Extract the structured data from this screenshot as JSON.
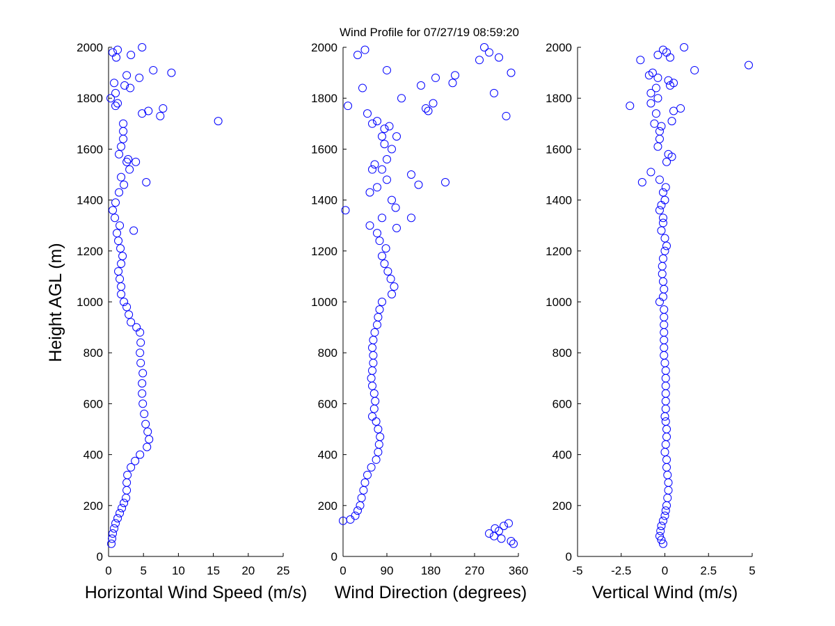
{
  "figure": {
    "title": "Wind Profile for  07/27/19 08:59:20",
    "ylabel": "Height AGL (m)"
  },
  "chart_data": [
    {
      "type": "scatter",
      "xlabel": "Horizontal Wind Speed (m/s)",
      "ylabel": "Height AGL (m)",
      "xlim": [
        0,
        25
      ],
      "ylim": [
        0,
        2000
      ],
      "xticks": [
        "0",
        "5",
        "10",
        "15",
        "20",
        "25"
      ],
      "xtick_values": [
        0,
        5,
        10,
        15,
        20,
        25
      ],
      "yticks": [
        "0",
        "200",
        "400",
        "600",
        "800",
        "1000",
        "1200",
        "1400",
        "1600",
        "1800",
        "2000"
      ],
      "ytick_values": [
        0,
        200,
        400,
        600,
        800,
        1000,
        1200,
        1400,
        1600,
        1800,
        2000
      ],
      "marker": "open-circle",
      "marker_color": "#0000ff",
      "points": [
        [
          0.4,
          50
        ],
        [
          0.5,
          70
        ],
        [
          0.6,
          90
        ],
        [
          0.8,
          110
        ],
        [
          1.0,
          130
        ],
        [
          1.3,
          150
        ],
        [
          1.6,
          170
        ],
        [
          1.9,
          190
        ],
        [
          2.2,
          210
        ],
        [
          2.5,
          230
        ],
        [
          2.6,
          260
        ],
        [
          2.6,
          290
        ],
        [
          2.7,
          320
        ],
        [
          3.2,
          350
        ],
        [
          3.8,
          375
        ],
        [
          4.5,
          400
        ],
        [
          5.5,
          430
        ],
        [
          5.8,
          460
        ],
        [
          5.6,
          490
        ],
        [
          5.3,
          520
        ],
        [
          5.1,
          560
        ],
        [
          4.9,
          600
        ],
        [
          4.8,
          640
        ],
        [
          4.8,
          680
        ],
        [
          4.9,
          720
        ],
        [
          4.6,
          760
        ],
        [
          4.5,
          800
        ],
        [
          4.6,
          840
        ],
        [
          4.5,
          880
        ],
        [
          4.0,
          900
        ],
        [
          3.2,
          920
        ],
        [
          2.9,
          950
        ],
        [
          2.6,
          980
        ],
        [
          2.2,
          1000
        ],
        [
          1.8,
          1030
        ],
        [
          1.8,
          1060
        ],
        [
          1.6,
          1090
        ],
        [
          1.4,
          1120
        ],
        [
          1.8,
          1150
        ],
        [
          2.0,
          1180
        ],
        [
          1.7,
          1210
        ],
        [
          1.4,
          1240
        ],
        [
          1.2,
          1270
        ],
        [
          1.6,
          1300
        ],
        [
          0.9,
          1330
        ],
        [
          0.6,
          1360
        ],
        [
          1.0,
          1390
        ],
        [
          1.5,
          1430
        ],
        [
          2.2,
          1460
        ],
        [
          1.8,
          1490
        ],
        [
          3.0,
          1520
        ],
        [
          2.6,
          1550
        ],
        [
          1.5,
          1580
        ],
        [
          1.8,
          1610
        ],
        [
          2.1,
          1640
        ],
        [
          2.1,
          1670
        ],
        [
          2.1,
          1700
        ],
        [
          15.7,
          1710
        ],
        [
          7.4,
          1730
        ],
        [
          4.8,
          1740
        ],
        [
          5.7,
          1750
        ],
        [
          7.8,
          1760
        ],
        [
          1.3,
          1780
        ],
        [
          0.3,
          1800
        ],
        [
          2.3,
          1850
        ],
        [
          1.0,
          1820
        ],
        [
          3.1,
          1840
        ],
        [
          0.8,
          1860
        ],
        [
          4.4,
          1880
        ],
        [
          2.6,
          1890
        ],
        [
          9.0,
          1900
        ],
        [
          6.4,
          1910
        ],
        [
          1.1,
          1960
        ],
        [
          3.2,
          1970
        ],
        [
          0.6,
          1980
        ],
        [
          1.3,
          1990
        ],
        [
          4.8,
          2000
        ],
        [
          1.0,
          1770
        ],
        [
          3.6,
          1280
        ],
        [
          5.4,
          1470
        ],
        [
          2.8,
          1560
        ],
        [
          3.9,
          1550
        ]
      ]
    },
    {
      "type": "scatter",
      "xlabel": "Wind Direction (degrees)",
      "ylabel": "",
      "xlim": [
        0,
        360
      ],
      "ylim": [
        0,
        2000
      ],
      "xticks": [
        "0",
        "90",
        "180",
        "270",
        "360"
      ],
      "xtick_values": [
        0,
        90,
        180,
        270,
        360
      ],
      "yticks": [
        "0",
        "200",
        "400",
        "600",
        "800",
        "1000",
        "1200",
        "1400",
        "1600",
        "1800",
        "2000"
      ],
      "ytick_values": [
        0,
        200,
        400,
        600,
        800,
        1000,
        1200,
        1400,
        1600,
        1800,
        2000
      ],
      "marker": "open-circle",
      "marker_color": "#0000ff",
      "points": [
        [
          0,
          140
        ],
        [
          15,
          145
        ],
        [
          25,
          160
        ],
        [
          30,
          180
        ],
        [
          35,
          200
        ],
        [
          38,
          230
        ],
        [
          42,
          260
        ],
        [
          45,
          290
        ],
        [
          50,
          320
        ],
        [
          58,
          350
        ],
        [
          68,
          380
        ],
        [
          72,
          410
        ],
        [
          74,
          440
        ],
        [
          76,
          470
        ],
        [
          72,
          500
        ],
        [
          68,
          530
        ],
        [
          60,
          550
        ],
        [
          64,
          580
        ],
        [
          66,
          610
        ],
        [
          64,
          640
        ],
        [
          60,
          670
        ],
        [
          58,
          700
        ],
        [
          60,
          730
        ],
        [
          62,
          760
        ],
        [
          62,
          790
        ],
        [
          60,
          820
        ],
        [
          62,
          850
        ],
        [
          65,
          880
        ],
        [
          70,
          910
        ],
        [
          72,
          940
        ],
        [
          75,
          970
        ],
        [
          80,
          1000
        ],
        [
          100,
          1030
        ],
        [
          105,
          1060
        ],
        [
          98,
          1090
        ],
        [
          92,
          1120
        ],
        [
          85,
          1150
        ],
        [
          80,
          1180
        ],
        [
          88,
          1210
        ],
        [
          75,
          1240
        ],
        [
          70,
          1270
        ],
        [
          55,
          1300
        ],
        [
          80,
          1330
        ],
        [
          140,
          1330
        ],
        [
          110,
          1290
        ],
        [
          108,
          1370
        ],
        [
          100,
          1400
        ],
        [
          70,
          1450
        ],
        [
          55,
          1430
        ],
        [
          90,
          1480
        ],
        [
          140,
          1500
        ],
        [
          155,
          1460
        ],
        [
          210,
          1470
        ],
        [
          65,
          1540
        ],
        [
          80,
          1520
        ],
        [
          90,
          1560
        ],
        [
          100,
          1600
        ],
        [
          85,
          1620
        ],
        [
          80,
          1650
        ],
        [
          95,
          1690
        ],
        [
          110,
          1650
        ],
        [
          85,
          1680
        ],
        [
          60,
          1700
        ],
        [
          50,
          1740
        ],
        [
          70,
          1710
        ],
        [
          10,
          1770
        ],
        [
          170,
          1760
        ],
        [
          185,
          1780
        ],
        [
          120,
          1800
        ],
        [
          175,
          1750
        ],
        [
          225,
          1860
        ],
        [
          160,
          1850
        ],
        [
          190,
          1880
        ],
        [
          230,
          1890
        ],
        [
          310,
          1820
        ],
        [
          335,
          1730
        ],
        [
          345,
          1900
        ],
        [
          5,
          1360
        ],
        [
          90,
          1910
        ],
        [
          40,
          1840
        ],
        [
          280,
          1950
        ],
        [
          320,
          1960
        ],
        [
          290,
          2000
        ],
        [
          300,
          1980
        ],
        [
          30,
          1970
        ],
        [
          45,
          1990
        ],
        [
          300,
          90
        ],
        [
          312,
          110
        ],
        [
          320,
          100
        ],
        [
          330,
          120
        ],
        [
          340,
          130
        ],
        [
          345,
          60
        ],
        [
          350,
          50
        ],
        [
          310,
          80
        ],
        [
          325,
          70
        ],
        [
          60,
          1520
        ]
      ]
    },
    {
      "type": "scatter",
      "xlabel": "Vertical Wind (m/s)",
      "ylabel": "",
      "xlim": [
        -5,
        5
      ],
      "ylim": [
        0,
        2000
      ],
      "xticks": [
        "-5",
        "-2.5",
        "0",
        "2.5",
        "5"
      ],
      "xtick_values": [
        -5,
        -2.5,
        0,
        2.5,
        5
      ],
      "yticks": [
        "0",
        "200",
        "400",
        "600",
        "800",
        "1000",
        "1200",
        "1400",
        "1600",
        "1800",
        "2000"
      ],
      "ytick_values": [
        0,
        200,
        400,
        600,
        800,
        1000,
        1200,
        1400,
        1600,
        1800,
        2000
      ],
      "marker": "open-circle",
      "marker_color": "#0000ff",
      "points": [
        [
          -0.1,
          50
        ],
        [
          -0.2,
          65
        ],
        [
          -0.3,
          80
        ],
        [
          -0.25,
          100
        ],
        [
          -0.2,
          120
        ],
        [
          -0.1,
          140
        ],
        [
          0,
          160
        ],
        [
          0.05,
          180
        ],
        [
          0.1,
          200
        ],
        [
          0.15,
          230
        ],
        [
          0.2,
          260
        ],
        [
          0.2,
          290
        ],
        [
          0.15,
          320
        ],
        [
          0.1,
          350
        ],
        [
          0.1,
          380
        ],
        [
          0,
          410
        ],
        [
          0.05,
          440
        ],
        [
          0.1,
          470
        ],
        [
          0.1,
          500
        ],
        [
          0.05,
          530
        ],
        [
          0,
          550
        ],
        [
          0.05,
          580
        ],
        [
          0.05,
          610
        ],
        [
          0.05,
          640
        ],
        [
          0.05,
          670
        ],
        [
          0.05,
          700
        ],
        [
          0.05,
          730
        ],
        [
          0,
          760
        ],
        [
          -0.05,
          790
        ],
        [
          -0.05,
          820
        ],
        [
          -0.05,
          850
        ],
        [
          -0.05,
          880
        ],
        [
          -0.05,
          910
        ],
        [
          -0.05,
          940
        ],
        [
          -0.05,
          970
        ],
        [
          -0.3,
          1000
        ],
        [
          -0.1,
          1020
        ],
        [
          -0.05,
          1050
        ],
        [
          -0.1,
          1080
        ],
        [
          -0.15,
          1110
        ],
        [
          -0.15,
          1140
        ],
        [
          -0.1,
          1170
        ],
        [
          0,
          1200
        ],
        [
          0.1,
          1220
        ],
        [
          0,
          1250
        ],
        [
          -0.2,
          1280
        ],
        [
          -0.1,
          1310
        ],
        [
          -0.1,
          1330
        ],
        [
          -0.3,
          1360
        ],
        [
          -0.2,
          1380
        ],
        [
          0,
          1400
        ],
        [
          -0.1,
          1430
        ],
        [
          0.05,
          1450
        ],
        [
          -0.3,
          1480
        ],
        [
          -0.8,
          1510
        ],
        [
          -1.3,
          1470
        ],
        [
          0.1,
          1550
        ],
        [
          0.2,
          1580
        ],
        [
          0.4,
          1570
        ],
        [
          -0.4,
          1610
        ],
        [
          -0.3,
          1640
        ],
        [
          -0.3,
          1670
        ],
        [
          -0.6,
          1700
        ],
        [
          -0.2,
          1690
        ],
        [
          -0.5,
          1740
        ],
        [
          -0.8,
          1780
        ],
        [
          -2.0,
          1770
        ],
        [
          -0.4,
          1800
        ],
        [
          -0.8,
          1820
        ],
        [
          -0.5,
          1840
        ],
        [
          0.3,
          1850
        ],
        [
          0.5,
          1860
        ],
        [
          -0.9,
          1890
        ],
        [
          -0.7,
          1900
        ],
        [
          -0.4,
          1880
        ],
        [
          -1.4,
          1950
        ],
        [
          -0.4,
          1970
        ],
        [
          -0.1,
          1990
        ],
        [
          0.1,
          1980
        ],
        [
          0.3,
          1960
        ],
        [
          1.1,
          2000
        ],
        [
          1.7,
          1910
        ],
        [
          4.8,
          1930
        ],
        [
          0.2,
          1870
        ],
        [
          0.4,
          1710
        ],
        [
          0.9,
          1760
        ],
        [
          0.5,
          1750
        ]
      ]
    }
  ]
}
